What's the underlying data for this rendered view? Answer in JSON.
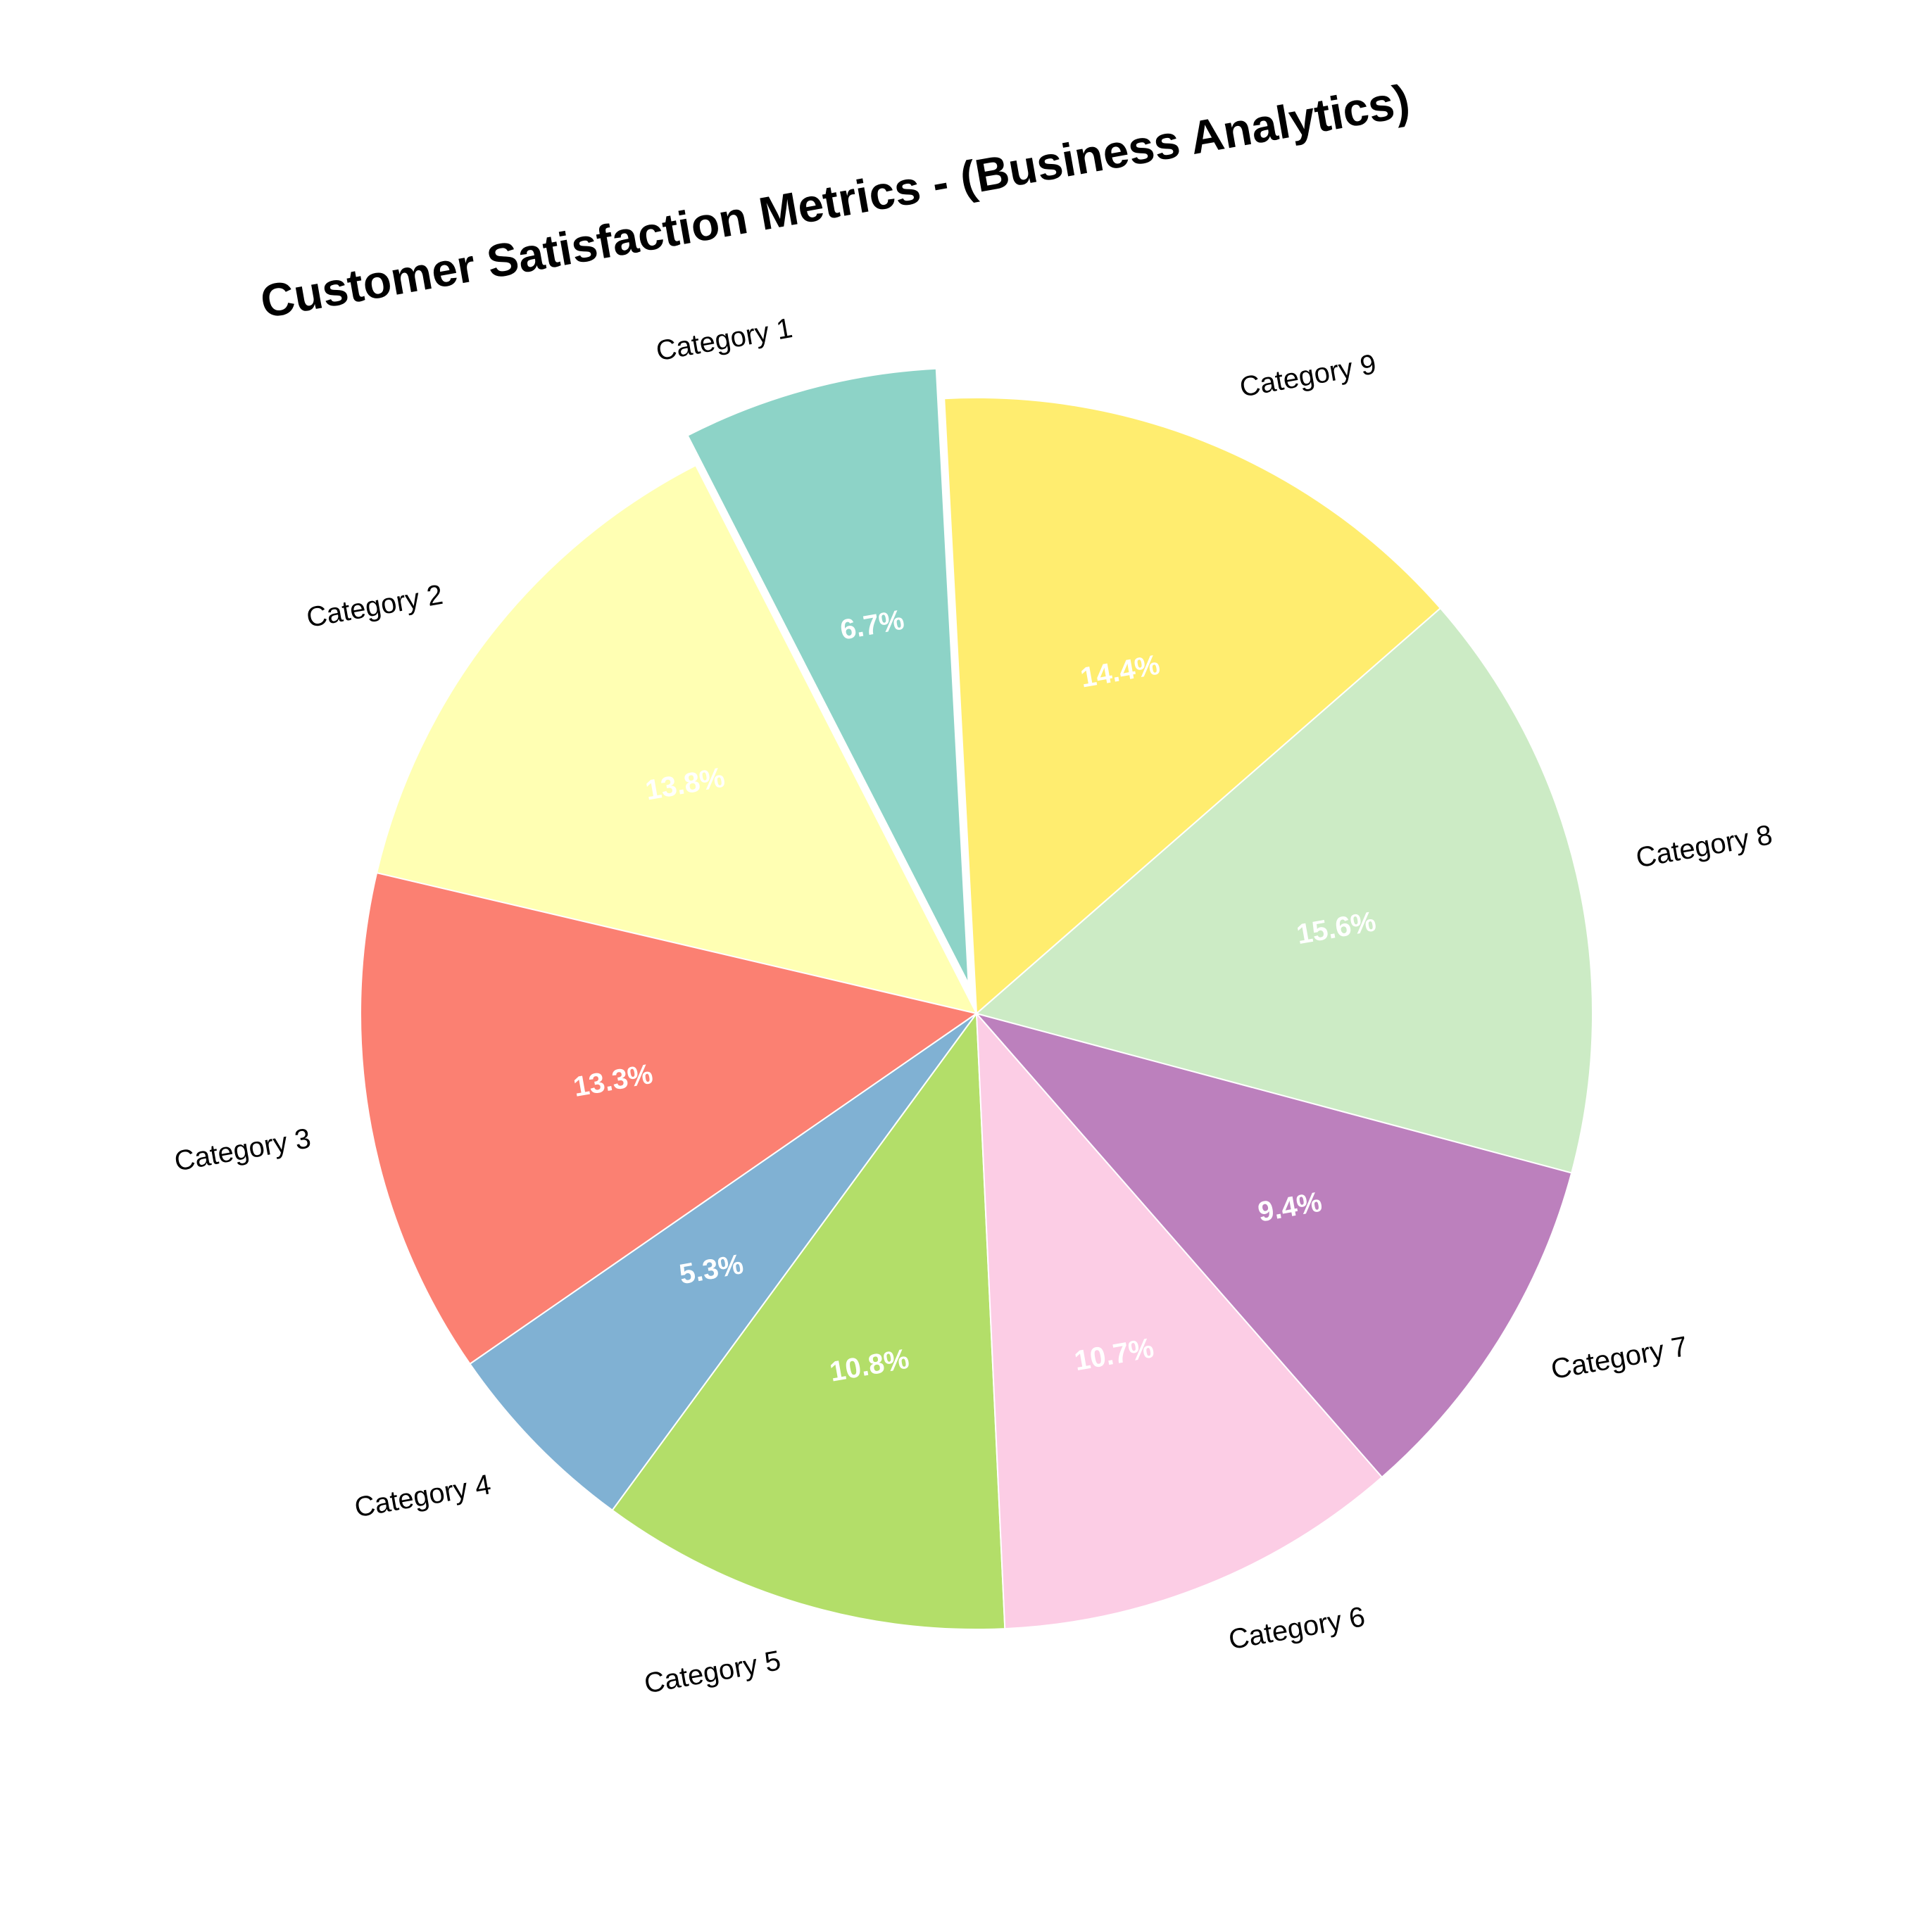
{
  "chart_data": {
    "type": "pie",
    "title": "Customer Satisfaction Metrics - (Business Analytics)",
    "categories": [
      "Category 1",
      "Category 2",
      "Category 3",
      "Category 4",
      "Category 5",
      "Category 6",
      "Category 7",
      "Category 8",
      "Category 9"
    ],
    "values": [
      6.7,
      13.8,
      13.3,
      5.3,
      10.8,
      10.7,
      9.4,
      15.6,
      14.4
    ],
    "value_labels": [
      "6.7%",
      "13.8%",
      "13.3%",
      "5.3%",
      "10.8%",
      "10.7%",
      "9.4%",
      "15.6%",
      "14.4%"
    ],
    "colors": [
      "#8dd3c7",
      "#ffffb3",
      "#fb8072",
      "#80b1d3",
      "#b3de69",
      "#fccde5",
      "#bc80bd",
      "#ccebc5",
      "#ffed6f"
    ],
    "exploded": [
      "Category 1"
    ],
    "start_angle_deg": 93,
    "direction": "counterclockwise",
    "legend": "none"
  }
}
